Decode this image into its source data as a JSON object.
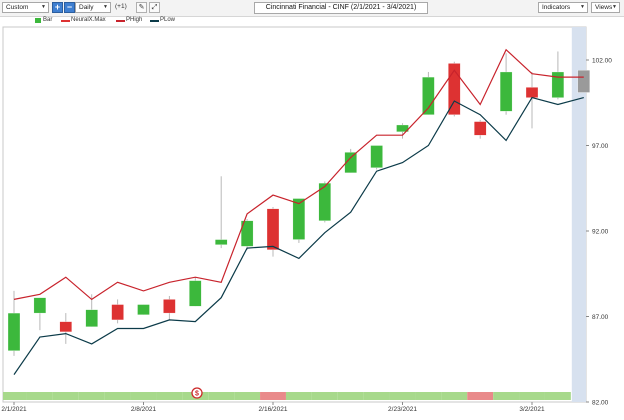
{
  "toolbar": {
    "custom_label": "Custom",
    "plus_label": "+",
    "minus_label": "−",
    "interval_label": "Daily",
    "offset_label": "(+1)",
    "title": "Cincinnati Financial - CINF (2/1/2021 - 3/4/2021)",
    "indicators_label": "Indicators",
    "views_label": "Views"
  },
  "legend": {
    "bar": "Bar",
    "neuralx": "NeuralX.Max",
    "phigh": "PHigh",
    "plow": "PLow"
  },
  "colors": {
    "up": "#3cb83c",
    "down": "#dd3232",
    "phigh": "#c8232c",
    "plow": "#0c3b49",
    "band_green": "#a7d98b",
    "band_red": "#e98a8a",
    "forecast": "#d7e1ef"
  },
  "chart_data": {
    "type": "candlestick",
    "x_labels": [
      "2/1/2021",
      "2/8/2021",
      "2/16/2021",
      "2/23/2021",
      "3/2/2021"
    ],
    "x_label_index": [
      0,
      5,
      10,
      15,
      20
    ],
    "y_ticks": [
      "102.00",
      "97.00",
      "92.00",
      "87.00",
      "82.00"
    ],
    "y_tick_values": [
      102,
      97,
      92,
      87,
      82
    ],
    "ylim": [
      82,
      104
    ],
    "candles": [
      {
        "o": 85.0,
        "h": 88.5,
        "l": 84.7,
        "c": 87.2
      },
      {
        "o": 87.2,
        "h": 88.1,
        "l": 86.2,
        "c": 88.1
      },
      {
        "o": 86.7,
        "h": 87.2,
        "l": 85.4,
        "c": 86.1
      },
      {
        "o": 86.4,
        "h": 88.3,
        "l": 86.4,
        "c": 87.4
      },
      {
        "o": 87.7,
        "h": 88.0,
        "l": 86.6,
        "c": 86.8
      },
      {
        "o": 87.1,
        "h": 87.7,
        "l": 87.1,
        "c": 87.7
      },
      {
        "o": 88.0,
        "h": 88.2,
        "l": 86.8,
        "c": 87.2
      },
      {
        "o": 87.6,
        "h": 89.3,
        "l": 87.6,
        "c": 89.1
      },
      {
        "o": 91.2,
        "h": 95.2,
        "l": 91.0,
        "c": 91.5
      },
      {
        "o": 91.1,
        "h": 92.7,
        "l": 90.9,
        "c": 92.6
      },
      {
        "o": 93.3,
        "h": 93.4,
        "l": 90.5,
        "c": 90.9
      },
      {
        "o": 91.5,
        "h": 93.9,
        "l": 91.3,
        "c": 93.9
      },
      {
        "o": 92.6,
        "h": 94.9,
        "l": 92.5,
        "c": 94.8
      },
      {
        "o": 95.4,
        "h": 96.8,
        "l": 95.4,
        "c": 96.6
      },
      {
        "o": 95.7,
        "h": 97.0,
        "l": 95.6,
        "c": 97.0
      },
      {
        "o": 97.8,
        "h": 98.3,
        "l": 97.4,
        "c": 98.2
      },
      {
        "o": 98.8,
        "h": 101.3,
        "l": 98.8,
        "c": 101.0
      },
      {
        "o": 101.8,
        "h": 101.9,
        "l": 98.7,
        "c": 98.8
      },
      {
        "o": 98.4,
        "h": 98.5,
        "l": 97.4,
        "c": 97.6
      },
      {
        "o": 99.0,
        "h": 102.4,
        "l": 98.8,
        "c": 101.3
      },
      {
        "o": 100.4,
        "h": 101.3,
        "l": 98.0,
        "c": 99.8
      },
      {
        "o": 99.8,
        "h": 102.5,
        "l": 99.7,
        "c": 101.3
      },
      {
        "o": 101.4,
        "h": 101.4,
        "l": 100.1,
        "c": 100.1
      }
    ],
    "phigh": [
      88.0,
      88.3,
      89.3,
      88.0,
      89.0,
      88.5,
      89.0,
      89.3,
      89.0,
      93.0,
      94.1,
      93.6,
      94.6,
      96.3,
      97.6,
      97.6,
      99.2,
      101.4,
      99.4,
      102.6,
      101.2,
      101.0,
      101.0
    ],
    "plow": [
      83.6,
      85.8,
      86.0,
      85.4,
      86.3,
      86.3,
      86.8,
      86.7,
      88.1,
      91.0,
      91.1,
      90.4,
      91.9,
      93.1,
      95.5,
      96.0,
      97.0,
      99.6,
      98.8,
      97.3,
      99.8,
      99.4,
      99.8
    ],
    "neuralx_band": [
      "green",
      "green",
      "green",
      "green",
      "green",
      "green",
      "green",
      "green",
      "green",
      "green",
      "red",
      "green",
      "green",
      "green",
      "green",
      "green",
      "green",
      "green",
      "red",
      "green",
      "green",
      "green"
    ]
  }
}
